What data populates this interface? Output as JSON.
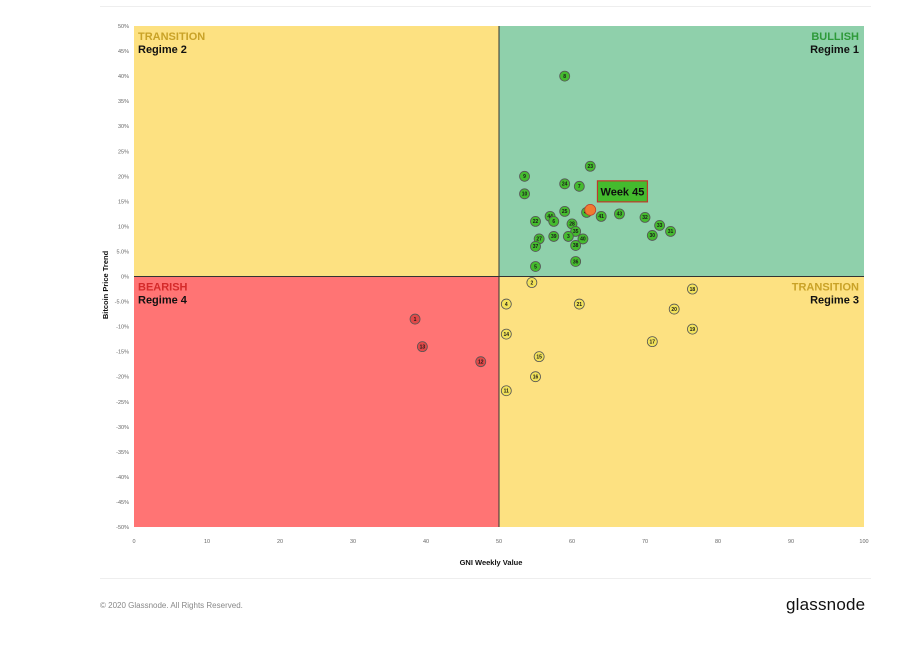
{
  "chart_data": {
    "type": "scatter",
    "title": "",
    "xlabel": "GNI  Weekly Value",
    "ylabel": "Bitcoin  Price Trend",
    "xlim": [
      0,
      100
    ],
    "ylim": [
      -50,
      50
    ],
    "x_ticks": [
      0,
      10,
      20,
      30,
      40,
      50,
      60,
      70,
      80,
      90,
      100
    ],
    "x_tick_labels": [
      "0",
      "10",
      "20",
      "30",
      "40",
      "50",
      "60",
      "70",
      "80",
      "90",
      "100"
    ],
    "y_ticks": [
      50,
      45,
      40,
      35,
      30,
      25,
      20,
      15,
      10,
      5,
      0,
      -5,
      -10,
      -15,
      -20,
      -25,
      -30,
      -35,
      -40,
      -45,
      -50
    ],
    "y_tick_labels": [
      "50%",
      "45%",
      "40%",
      "35%",
      "30%",
      "25%",
      "20%",
      "15%",
      "10%",
      "5.0%",
      "0%",
      "-5.0%",
      "-10%",
      "-15%",
      "-20%",
      "-25%",
      "-30%",
      "-35%",
      "-40%",
      "-45%",
      "-50%"
    ],
    "grid": false,
    "quadrants": [
      {
        "key": "top-left",
        "label": "TRANSITION",
        "regime": "Regime 2",
        "fill": "#fde181",
        "label_color": "#c9a227",
        "align": "left"
      },
      {
        "key": "top-right",
        "label": "BULLISH",
        "regime": "Regime 1",
        "fill": "#8fd0ab",
        "label_color": "#2e9a3a",
        "align": "right"
      },
      {
        "key": "bottom-left",
        "label": "BEARISH",
        "regime": "Regime 4",
        "fill": "#ff7474",
        "label_color": "#d42a2a",
        "align": "left"
      },
      {
        "key": "bottom-right",
        "label": "TRANSITION",
        "regime": "Regime 3",
        "fill": "#fde181",
        "label_color": "#c9a227",
        "align": "right"
      }
    ],
    "colors": {
      "bullish": "#44bb2e",
      "transition": "#f2e25a",
      "bearish": "#e24848",
      "current": "#f07a30"
    },
    "points": [
      {
        "label": "8",
        "x": 59,
        "y": 40,
        "regime": "bullish"
      },
      {
        "label": "23",
        "x": 62.5,
        "y": 22,
        "regime": "bullish"
      },
      {
        "label": "9",
        "x": 53.5,
        "y": 20,
        "regime": "bullish"
      },
      {
        "label": "24",
        "x": 59,
        "y": 18.5,
        "regime": "bullish"
      },
      {
        "label": "7",
        "x": 61,
        "y": 18,
        "regime": "bullish"
      },
      {
        "label": "10",
        "x": 53.5,
        "y": 16.5,
        "regime": "bullish"
      },
      {
        "label": "25",
        "x": 59,
        "y": 13,
        "regime": "bullish"
      },
      {
        "label": "42",
        "x": 62,
        "y": 12.8,
        "regime": "bullish"
      },
      {
        "label": "44",
        "x": 57,
        "y": 12,
        "regime": "bullish"
      },
      {
        "label": "41",
        "x": 64,
        "y": 12,
        "regime": "bullish"
      },
      {
        "label": "43",
        "x": 66.5,
        "y": 12.5,
        "regime": "bullish"
      },
      {
        "label": "32",
        "x": 70,
        "y": 11.8,
        "regime": "bullish"
      },
      {
        "label": "22",
        "x": 55,
        "y": 11,
        "regime": "bullish"
      },
      {
        "label": "6",
        "x": 57.5,
        "y": 11,
        "regime": "bullish"
      },
      {
        "label": "28",
        "x": 60,
        "y": 10.5,
        "regime": "bullish"
      },
      {
        "label": "33",
        "x": 72,
        "y": 10.2,
        "regime": "bullish"
      },
      {
        "label": "35",
        "x": 60.5,
        "y": 9,
        "regime": "bullish"
      },
      {
        "label": "31",
        "x": 73.5,
        "y": 9,
        "regime": "bullish"
      },
      {
        "label": "30",
        "x": 71,
        "y": 8.2,
        "regime": "bullish"
      },
      {
        "label": "27",
        "x": 55.5,
        "y": 7.5,
        "regime": "bullish"
      },
      {
        "label": "39",
        "x": 57.5,
        "y": 8,
        "regime": "bullish"
      },
      {
        "label": "3",
        "x": 59.5,
        "y": 8,
        "regime": "bullish"
      },
      {
        "label": "40",
        "x": 61.5,
        "y": 7.5,
        "regime": "bullish"
      },
      {
        "label": "37",
        "x": 55,
        "y": 6,
        "regime": "bullish"
      },
      {
        "label": "38",
        "x": 60.5,
        "y": 6.2,
        "regime": "bullish"
      },
      {
        "label": "36",
        "x": 60.5,
        "y": 3,
        "regime": "bullish"
      },
      {
        "label": "5",
        "x": 55,
        "y": 2,
        "regime": "bullish"
      },
      {
        "label": "2",
        "x": 54.5,
        "y": -1.2,
        "regime": "transition"
      },
      {
        "label": "18",
        "x": 76.5,
        "y": -2.5,
        "regime": "transition"
      },
      {
        "label": "4",
        "x": 51,
        "y": -5.5,
        "regime": "transition"
      },
      {
        "label": "21",
        "x": 61,
        "y": -5.5,
        "regime": "transition"
      },
      {
        "label": "20",
        "x": 74,
        "y": -6.5,
        "regime": "transition"
      },
      {
        "label": "14",
        "x": 51,
        "y": -11.5,
        "regime": "transition"
      },
      {
        "label": "19",
        "x": 76.5,
        "y": -10.5,
        "regime": "transition"
      },
      {
        "label": "17",
        "x": 71,
        "y": -13,
        "regime": "transition"
      },
      {
        "label": "15",
        "x": 55.5,
        "y": -16,
        "regime": "transition"
      },
      {
        "label": "16",
        "x": 55,
        "y": -20,
        "regime": "transition"
      },
      {
        "label": "11",
        "x": 51,
        "y": -22.8,
        "regime": "transition"
      },
      {
        "label": "1",
        "x": 38.5,
        "y": -8.5,
        "regime": "bearish"
      },
      {
        "label": "13",
        "x": 39.5,
        "y": -14,
        "regime": "bearish"
      },
      {
        "label": "12",
        "x": 47.5,
        "y": -17,
        "regime": "bearish"
      },
      {
        "label": "",
        "x": 62.5,
        "y": 13.3,
        "regime": "current"
      }
    ],
    "annotation": {
      "text": "Week 45",
      "x": 62.8,
      "y": 13.3,
      "bg": "#44bb2e",
      "border": "#c0392b"
    }
  },
  "footer": {
    "copyright": "© 2020 Glassnode. All Rights Reserved.",
    "logo_text": "glassnode"
  }
}
